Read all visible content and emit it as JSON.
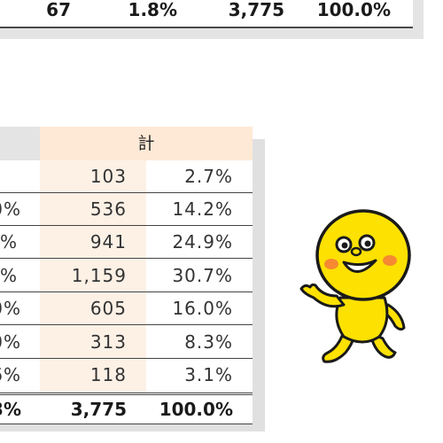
{
  "top_table": {
    "left_partial": "67",
    "mid_partial": "1.8%",
    "total_count": "3,775",
    "total_pct": "100.0%"
  },
  "main_table": {
    "header": {
      "total_label": "計"
    },
    "rows": [
      {
        "left_partial": "",
        "count": "103",
        "pct": "2.7%"
      },
      {
        "left_partial": "0%",
        "count": "536",
        "pct": "14.2%"
      },
      {
        "left_partial": "%",
        "count": "941",
        "pct": "24.9%"
      },
      {
        "left_partial": "%",
        "count": "1,159",
        "pct": "30.7%"
      },
      {
        "left_partial": "0%",
        "count": "605",
        "pct": "16.0%"
      },
      {
        "left_partial": "0%",
        "count": "313",
        "pct": "8.3%"
      },
      {
        "left_partial": "6%",
        "count": "118",
        "pct": "3.1%"
      }
    ],
    "total": {
      "left_partial": "3%",
      "count": "3,775",
      "pct": "100.0%"
    }
  },
  "colors": {
    "header_bg": "#fde9d6",
    "count_band_bg": "#fdf1e6",
    "shadow": "#e0e0e0",
    "mascot_yellow": "#fde100"
  },
  "icons": {
    "mascot": "yellow-mascot-illustration"
  }
}
